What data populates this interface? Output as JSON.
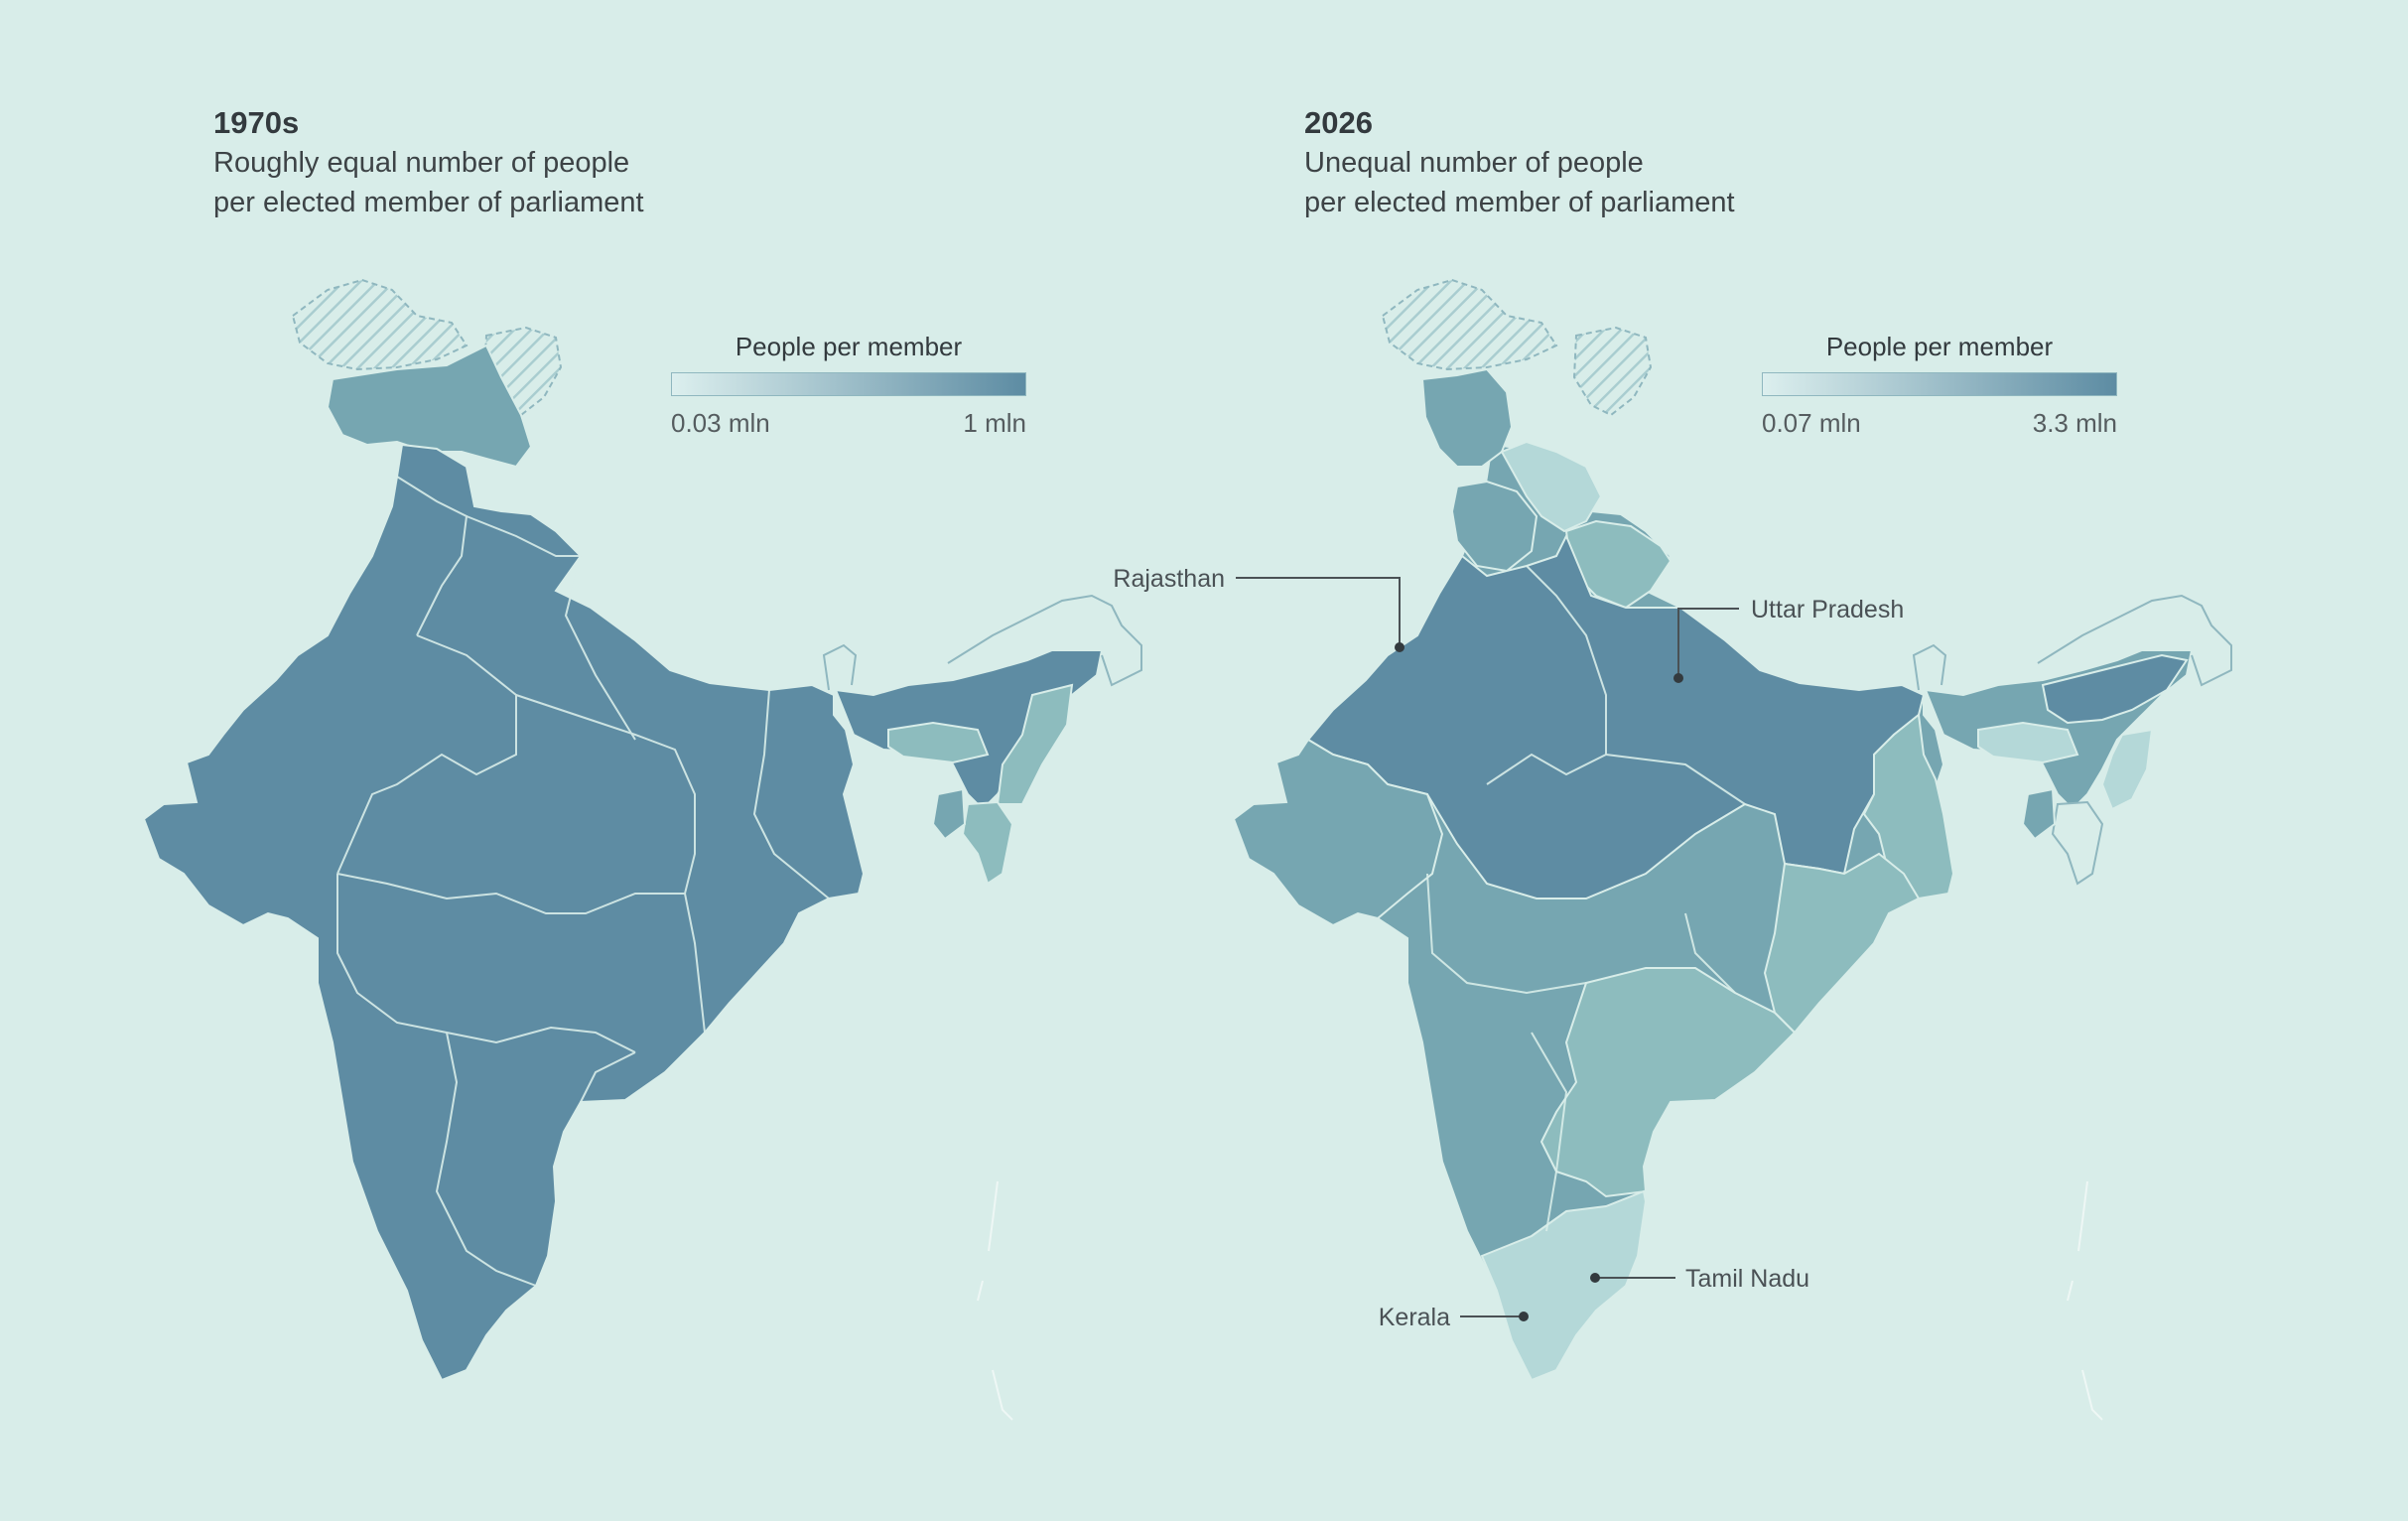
{
  "panels": [
    {
      "id": "1970s",
      "title": "1970s",
      "subtitle_line1": "Roughly equal number of people",
      "subtitle_line2": "per elected member of parliament",
      "legend": {
        "title": "People per member",
        "min_label": "0.03 mln",
        "max_label": "1 mln"
      },
      "callouts": []
    },
    {
      "id": "2026",
      "title": "2026",
      "subtitle_line1": "Unequal number of people",
      "subtitle_line2": "per elected member of parliament",
      "legend": {
        "title": "People per member",
        "min_label": "0.07 mln",
        "max_label": "3.3 mln"
      },
      "callouts": [
        "Rajasthan",
        "Uttar Pradesh",
        "Tamil Nadu",
        "Kerala"
      ]
    }
  ],
  "colors": {
    "background": "#d8ede9",
    "scale_low": "#dcefee",
    "scale_high": "#5d8ca3",
    "level_1": "#5e8ca3",
    "level_2": "#76a6b1",
    "level_3": "#8dbcbe",
    "level_4": "#b4d8d8",
    "disputed_hatch": "#a9cdd0"
  }
}
